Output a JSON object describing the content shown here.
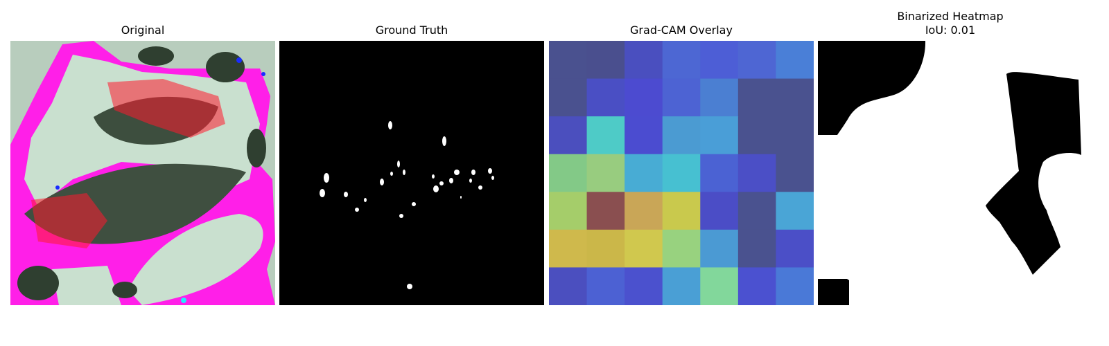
{
  "panels": {
    "original": {
      "title": "Original"
    },
    "ground_truth": {
      "title": "Ground Truth"
    },
    "overlay": {
      "title": "Grad-CAM Overlay"
    },
    "binarized": {
      "title": "Binarized Heatmap",
      "subtitle": "IoU: 0.01"
    }
  },
  "colors": {
    "magenta": "#ff1fe8",
    "red": "#ff1a2e",
    "leaf_light": "#c9e0cf",
    "leaf_dark": "#3f4f40",
    "mask_bg": "#000000",
    "mask_fg": "#ffffff"
  },
  "heatmap": {
    "colors": [
      [
        "#4a518f",
        "#4a4f8e",
        "#4a4fbf",
        "#4d67d3",
        "#4d5ed6",
        "#4e66d3",
        "#4a7fd7"
      ],
      [
        "#4a518f",
        "#4a4fc4",
        "#4c4bd0",
        "#4d63d3",
        "#4b7fd2",
        "#4a528f",
        "#4a528f"
      ],
      [
        "#4b4fbe",
        "#4ecbc7",
        "#4b4cd0",
        "#4b9bd2",
        "#4a9ed7",
        "#4a528f",
        "#4a528f"
      ],
      [
        "#83c987",
        "#98cc7f",
        "#48acd4",
        "#47c0d1",
        "#4b62d3",
        "#4b4fc6",
        "#4a528f"
      ],
      [
        "#a5cd6a",
        "#8a4f50",
        "#c9a657",
        "#c9c94d",
        "#4b4dc6",
        "#4a528f",
        "#4aa5d6"
      ],
      [
        "#cfb94c",
        "#cbb749",
        "#d0c84e",
        "#98d27f",
        "#4b9ad3",
        "#4a528f",
        "#4b4fc7"
      ],
      [
        "#4b4fbf",
        "#4c61d3",
        "#4b51ce",
        "#4a9fd5",
        "#82d79b",
        "#4b51d0",
        "#4a79d7"
      ]
    ]
  }
}
